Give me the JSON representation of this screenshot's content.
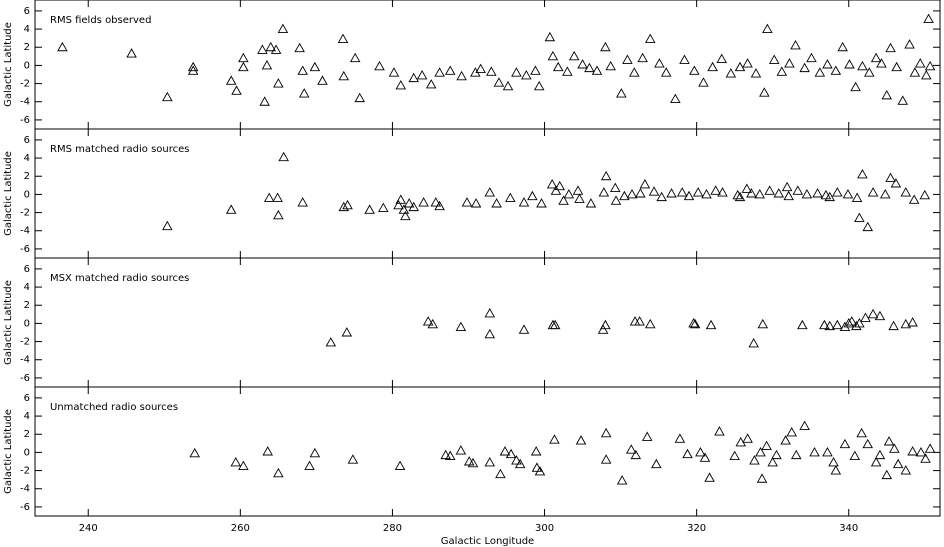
{
  "chart_data": [
    {
      "type": "scatter",
      "title": "RMS fields observed",
      "ylabel": "Galactic Latitude",
      "marker": "triangle",
      "color": "#000000",
      "xlim": [
        233,
        352
      ],
      "xticks": [
        240,
        260,
        280,
        300,
        320,
        340
      ],
      "ylim": [
        -7,
        7.2
      ],
      "yticks": [
        -6,
        -4,
        -2,
        0,
        2,
        4,
        6
      ],
      "show_xtick_labels": false,
      "x": [
        236.6,
        245.7,
        250.4,
        253.8,
        253.8,
        258.8,
        259.5,
        260.4,
        260.4,
        263.2,
        262.9,
        264,
        263.5,
        264.7,
        265.6,
        265,
        267.8,
        268.2,
        268.4,
        269.8,
        270.8,
        273.5,
        273.6,
        275.1,
        275.7,
        278.3,
        280.2,
        281.1,
        282.8,
        283.9,
        285.1,
        286.2,
        287.6,
        289.1,
        290.9,
        291.6,
        293,
        294,
        295.2,
        296.3,
        297.6,
        298.8,
        299.3,
        300.7,
        301.1,
        301.8,
        303,
        303.9,
        305,
        305.9,
        306.9,
        308,
        308.7,
        310.1,
        310.9,
        311.8,
        312.9,
        313.9,
        315.1,
        316,
        317.2,
        318.4,
        319.7,
        320.9,
        322.1,
        323.3,
        324.5,
        325.7,
        326.7,
        327.8,
        328.9,
        329.3,
        330.2,
        331.2,
        332.2,
        333,
        334.2,
        335.1,
        336.2,
        337.2,
        338.3,
        339.2,
        340.1,
        340.9,
        341.8,
        342.7,
        343.6,
        344.3,
        345,
        345.5,
        346.3,
        347.1,
        348,
        348.7,
        349.4,
        350.2,
        350.5,
        350.7
      ],
      "y": [
        2.0,
        1.3,
        -3.5,
        -0.2,
        -0.6,
        -1.7,
        -2.8,
        0.8,
        -0.2,
        -4.0,
        1.7,
        2.0,
        0,
        1.7,
        4.0,
        -2.0,
        1.9,
        -0.6,
        -3.1,
        -0.2,
        -1.7,
        2.9,
        -1.2,
        0.8,
        -3.6,
        -0.1,
        -0.8,
        -2.2,
        -1.4,
        -1.1,
        -2.1,
        -0.8,
        -0.6,
        -1.2,
        -0.8,
        -0.4,
        -0.7,
        -1.9,
        -2.3,
        -0.8,
        -1.1,
        -0.6,
        -2.3,
        3.1,
        1.0,
        -0.2,
        -0.7,
        1.0,
        0.1,
        -0.3,
        -0.6,
        2.0,
        -0.1,
        -3.1,
        0.6,
        -0.8,
        0.8,
        2.9,
        0.2,
        -0.8,
        -3.7,
        0.6,
        -0.6,
        -1.9,
        -0.2,
        0.7,
        -0.9,
        -0.2,
        0.2,
        -0.9,
        -3.0,
        4.0,
        0.6,
        -0.7,
        0.2,
        2.2,
        -0.3,
        0.8,
        -0.8,
        0.1,
        -0.6,
        2.0,
        0.1,
        -2.4,
        -0.1,
        -0.8,
        0.8,
        0.2,
        -3.3,
        1.9,
        -0.2,
        -3.9,
        2.3,
        -0.8,
        0.2,
        -1.1,
        5.1,
        -0.1
      ]
    },
    {
      "type": "scatter",
      "title": "RMS matched radio sources",
      "ylabel": "Galactic Latitude",
      "marker": "triangle",
      "color": "#000000",
      "xlim": [
        233,
        352
      ],
      "xticks": [
        240,
        260,
        280,
        300,
        320,
        340
      ],
      "ylim": [
        -7,
        7.2
      ],
      "yticks": [
        -6,
        -4,
        -2,
        0,
        2,
        4,
        6
      ],
      "show_xtick_labels": false,
      "x": [
        250.4,
        258.8,
        263.8,
        264.9,
        265,
        265.7,
        268.2,
        273.6,
        274.1,
        277,
        278.8,
        280.8,
        281.1,
        281.5,
        281.7,
        282.2,
        282.8,
        284.1,
        285.7,
        286.2,
        289.8,
        291,
        292.8,
        293.7,
        295.5,
        297.3,
        298.4,
        299.6,
        301,
        301.5,
        302,
        302.5,
        303.2,
        304.4,
        306.1,
        307.8,
        308.1,
        309.3,
        310.5,
        311.5,
        312.6,
        313.2,
        314.4,
        315.4,
        316.7,
        318.1,
        319,
        320.2,
        321.3,
        322.5,
        323.4,
        325.4,
        326.6,
        327.2,
        328.3,
        329.6,
        330.8,
        332.1,
        333.3,
        334.5,
        335.9,
        337,
        338.5,
        339.9,
        341.1,
        341.4,
        341.8,
        342.5,
        343.2,
        344.8,
        345.5,
        346.2,
        347.5,
        348.6,
        350,
        304.6,
        309.4,
        325.7,
        331.9,
        337.5
      ],
      "y": [
        -3.5,
        -1.7,
        -0.4,
        -0.4,
        -2.3,
        4.1,
        -0.9,
        -1.4,
        -1.2,
        -1.7,
        -1.5,
        -1.2,
        -0.6,
        -1.7,
        -2.4,
        -1.0,
        -1.4,
        -0.9,
        -0.9,
        -1.3,
        -0.9,
        -1.0,
        0.2,
        -1.0,
        -0.4,
        -0.9,
        -0.2,
        -1.0,
        1.1,
        0.4,
        0.9,
        -0.7,
        0,
        0.4,
        -1.0,
        0.2,
        2.0,
        0.7,
        -0.2,
        0,
        0.1,
        1.1,
        0.3,
        -0.3,
        0.1,
        0.2,
        -0.2,
        0.2,
        0,
        0.4,
        0.2,
        -0.1,
        0.6,
        0.1,
        0,
        0.4,
        0.1,
        -0.2,
        0.4,
        0,
        0.1,
        -0.1,
        0.2,
        0,
        -0.4,
        -2.6,
        2.2,
        -3.6,
        0.2,
        0,
        1.8,
        1.2,
        0.2,
        -0.6,
        -0.1,
        -0.5,
        -0.7,
        -0.3,
        0.8,
        -0.3
      ]
    },
    {
      "type": "scatter",
      "title": "MSX matched radio sources",
      "ylabel": "Galactic Latitude",
      "marker": "triangle",
      "color": "#000000",
      "xlim": [
        233,
        352
      ],
      "xticks": [
        240,
        260,
        280,
        300,
        320,
        340
      ],
      "ylim": [
        -7,
        7.2
      ],
      "yticks": [
        -6,
        -4,
        -2,
        0,
        2,
        4,
        6
      ],
      "show_xtick_labels": false,
      "x": [
        271.9,
        274,
        284.7,
        285.3,
        289,
        292.8,
        292.8,
        297.3,
        301.1,
        301.4,
        307.7,
        308,
        311.9,
        312.5,
        313.9,
        319.6,
        319.8,
        321.9,
        327.5,
        328.7,
        333.9,
        336.8,
        337.5,
        338.5,
        339.5,
        340.4,
        341.4,
        342.2,
        343.2,
        344.1,
        345.9,
        347.5,
        348.4,
        341,
        340
      ],
      "y": [
        -2.1,
        -1.0,
        0.2,
        -0.1,
        -0.4,
        1.1,
        -1.2,
        -0.7,
        -0.2,
        -0.2,
        -0.7,
        -0.2,
        0.2,
        0.2,
        -0.1,
        0,
        -0.1,
        -0.2,
        -2.2,
        -0.1,
        -0.2,
        -0.2,
        -0.3,
        -0.2,
        -0.4,
        0.2,
        0,
        0.6,
        1.0,
        0.8,
        -0.3,
        -0.1,
        0.1,
        -0.3,
        0
      ]
    },
    {
      "type": "scatter",
      "title": "Unmatched radio sources",
      "ylabel": "Galactic Latitude",
      "xlabel": "Galactic Longitude",
      "marker": "triangle",
      "color": "#000000",
      "xlim": [
        233,
        352
      ],
      "xticks": [
        240,
        260,
        280,
        300,
        320,
        340
      ],
      "ylim": [
        -7,
        7.2
      ],
      "yticks": [
        -6,
        -4,
        -2,
        0,
        2,
        4,
        6
      ],
      "show_xtick_labels": true,
      "x": [
        254,
        259.4,
        260.4,
        263.6,
        265,
        269.1,
        269.8,
        274.8,
        281,
        287,
        287.6,
        289,
        290.1,
        290.6,
        292.8,
        294.2,
        294.8,
        295.6,
        296.3,
        296.8,
        298.9,
        299,
        299.4,
        301.3,
        304.8,
        308.1,
        308.1,
        310.2,
        311.4,
        312,
        313.5,
        314.7,
        317.8,
        318.8,
        320.5,
        321.1,
        321.7,
        323,
        325,
        325.8,
        326.7,
        327.6,
        328.4,
        328.6,
        329.2,
        330,
        330.5,
        331.7,
        332.5,
        333.1,
        334.2,
        335.5,
        337.2,
        338,
        338.3,
        339.5,
        340.8,
        341.7,
        342.5,
        343.6,
        344.1,
        345,
        345.3,
        346,
        346.5,
        347.5,
        348.4,
        349.5,
        350.1,
        350.7
      ],
      "y": [
        -0.1,
        -1.1,
        -1.5,
        0.1,
        -2.3,
        -1.5,
        -0.1,
        -0.8,
        -1.5,
        -0.3,
        -0.4,
        0.2,
        -1.0,
        -1.2,
        -1.1,
        -2.4,
        0.1,
        -0.2,
        -0.9,
        -1.3,
        0.1,
        -1.7,
        -2.1,
        1.4,
        1.3,
        2.1,
        -0.8,
        -3.1,
        0.3,
        -0.3,
        1.7,
        -1.3,
        1.5,
        -0.2,
        0,
        -0.6,
        -2.8,
        2.3,
        -0.4,
        1.1,
        1.5,
        -0.9,
        0,
        -2.9,
        0.7,
        -1.1,
        -0.3,
        1.3,
        2.2,
        -0.3,
        2.9,
        0,
        0,
        -1.1,
        -2.0,
        0.9,
        -0.4,
        2.1,
        0.9,
        -1.1,
        -0.3,
        -2.5,
        1.2,
        0.4,
        -1.3,
        -2.0,
        0.1,
        0,
        -0.7,
        0.4
      ]
    }
  ]
}
